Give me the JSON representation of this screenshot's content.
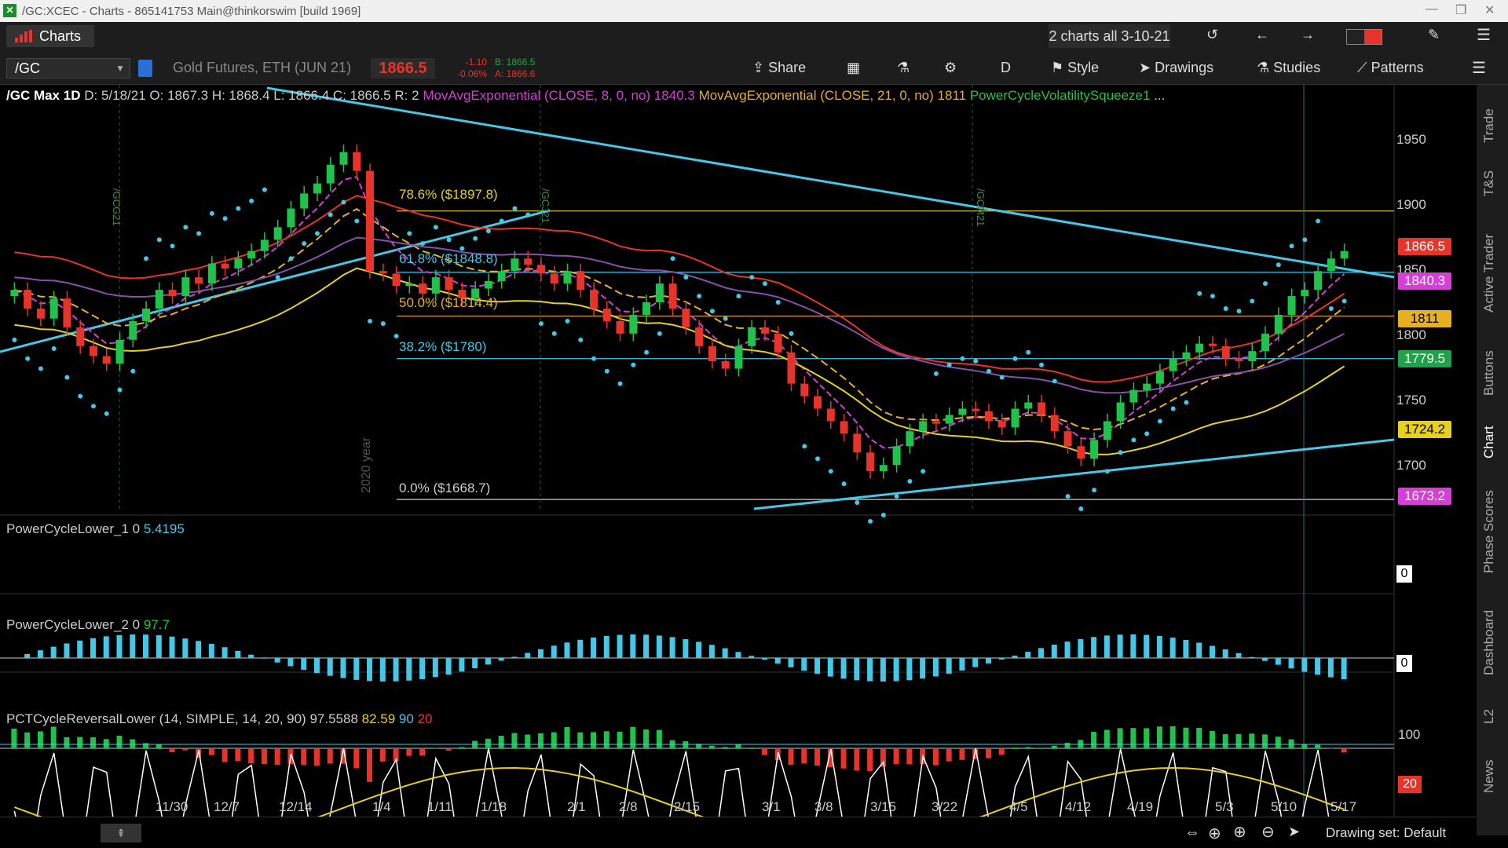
{
  "window": {
    "title": "/GC:XCEC - Charts - 865141753 Main@thinkorswim [build 1969]"
  },
  "toolbar": {
    "charts_label": "Charts",
    "charts_all": "2 charts all 3-10-21",
    "share": "Share",
    "style": "Style",
    "drawings": "Drawings",
    "studies": "Studies",
    "patterns": "Patterns",
    "aggregation": "D"
  },
  "symbol": {
    "ticker": "/GC",
    "description": "Gold Futures, ETH (JUN 21)",
    "price": "1866.5",
    "change": "-1.10",
    "change_pct": "-0.06%",
    "bid": "B: 1866.5",
    "ask": "A: 1866.6"
  },
  "header": {
    "name": "/GC Max 1D",
    "date": "D: 5/18/21",
    "open": "O: 1867.3",
    "high": "H: 1868.4",
    "low": "L: 1866.4",
    "close": "C: 1866.5",
    "r": "R: 2",
    "ema8": "MovAvgExponential (CLOSE, 8, 0, no)",
    "ema8_val": "1840.3",
    "ema21": "MovAvgExponential (CLOSE, 21, 0, no)",
    "ema21_val": "1811",
    "squeeze": "PowerCycleVolatilitySqueeze1",
    "more": "..."
  },
  "fib": [
    {
      "label": "78.6%  ($1897.8)"
    },
    {
      "label": "61.8%  ($1848.8)"
    },
    {
      "label": "50.0%  ($1814.4)"
    },
    {
      "label": "38.2%  ($1780)"
    },
    {
      "label": "0.0%  ($1668.7)"
    }
  ],
  "chart_marks": {
    "year_label": "2020 year",
    "contract_1": "/GCG21",
    "contract_2": "/GCJ21",
    "contract_3": "/GCM21"
  },
  "price_axis": [
    "1950",
    "1900",
    "1850",
    "1800",
    "1750",
    "1700"
  ],
  "price_tags": [
    {
      "value": "1866.5",
      "bg": "#e8332a",
      "fg": "#ffffff"
    },
    {
      "value": "1840.3",
      "bg": "#d63fd6",
      "fg": "#ffffff"
    },
    {
      "value": "1811",
      "bg": "#e6b020",
      "fg": "#000000"
    },
    {
      "value": "1779.5",
      "bg": "#1fa24a",
      "fg": "#ffffff"
    },
    {
      "value": "1724.2",
      "bg": "#e6d020",
      "fg": "#000000"
    },
    {
      "value": "1673.2",
      "bg": "#d63fd6",
      "fg": "#ffffff"
    }
  ],
  "x_axis": [
    "11/30",
    "12/7",
    "12/14",
    "1/4",
    "1/11",
    "1/18",
    "2/1",
    "2/8",
    "2/15",
    "3/1",
    "3/8",
    "3/15",
    "3/22",
    "4/5",
    "4/12",
    "4/19",
    "5/3",
    "5/10",
    "5/17"
  ],
  "studies": {
    "lower1": {
      "name": "PowerCycleLower_1",
      "zero": "0",
      "value": "5.4195",
      "axis": "0"
    },
    "lower2": {
      "name": "PowerCycleLower_2",
      "zero": "0",
      "value": "97.7",
      "axis": "0"
    },
    "pct": {
      "name": "PCTCycleReversalLower (14, SIMPLE, 14, 20, 90)",
      "v1": "97.5588",
      "v2": "82.59",
      "v3": "90",
      "v4": "20",
      "axis_top": "100",
      "axis_bottom": "20"
    }
  },
  "sidebar": [
    "Trade",
    "T&S",
    "Active Trader",
    "Buttons",
    "Chart",
    "Phase Scores",
    "Dashboard",
    "L2",
    "News"
  ],
  "status": {
    "drawing_set": "Drawing set: Default"
  },
  "chart_data": {
    "type": "candlestick",
    "ylim": [
      1660,
      1980
    ],
    "closes": [
      1835,
      1820,
      1812,
      1828,
      1805,
      1790,
      1782,
      1776,
      1795,
      1810,
      1820,
      1835,
      1830,
      1845,
      1840,
      1856,
      1852,
      1860,
      1866,
      1875,
      1885,
      1900,
      1912,
      1920,
      1935,
      1945,
      1930,
      1850,
      1848,
      1838,
      1840,
      1832,
      1845,
      1835,
      1828,
      1836,
      1842,
      1850,
      1860,
      1855,
      1848,
      1840,
      1850,
      1835,
      1820,
      1810,
      1800,
      1815,
      1825,
      1840,
      1820,
      1805,
      1790,
      1778,
      1772,
      1790,
      1805,
      1800,
      1785,
      1760,
      1750,
      1740,
      1730,
      1720,
      1705,
      1690,
      1695,
      1710,
      1722,
      1730,
      1728,
      1735,
      1740,
      1738,
      1730,
      1725,
      1740,
      1745,
      1735,
      1722,
      1710,
      1700,
      1715,
      1730,
      1745,
      1755,
      1760,
      1770,
      1780,
      1785,
      1792,
      1790,
      1780,
      1778,
      1786,
      1800,
      1815,
      1830,
      1835,
      1850,
      1860,
      1866
    ]
  }
}
